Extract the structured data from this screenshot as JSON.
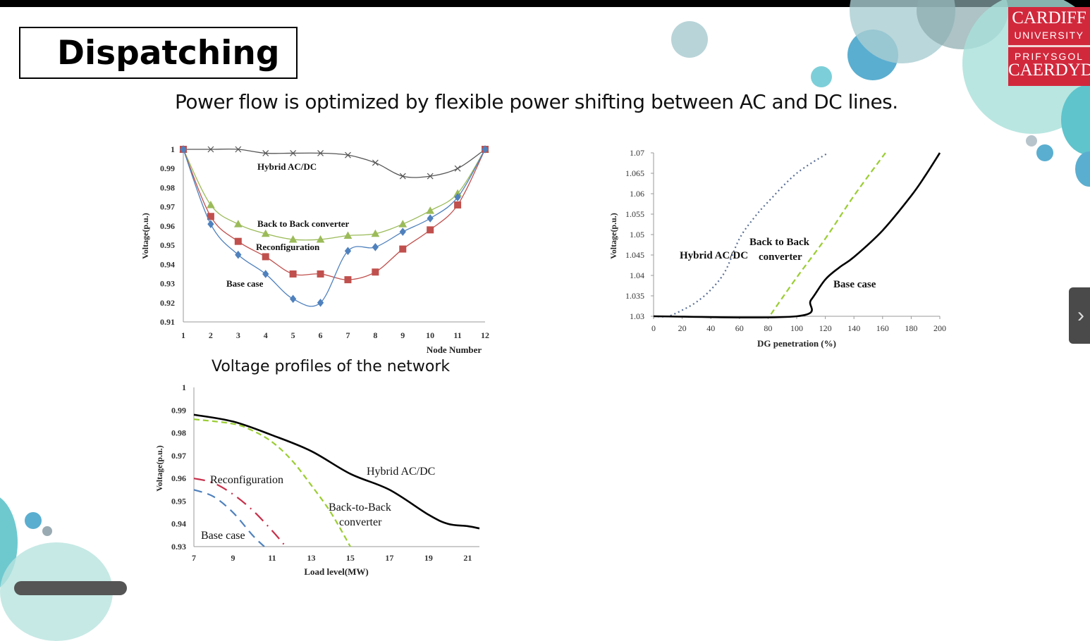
{
  "slide": {
    "title": "Dispatching",
    "subtitle": "Power flow is optimized by flexible power shifting between AC and DC lines.",
    "caption": "Voltage profiles of the network",
    "logo": {
      "line1": "CARDIFF",
      "line2": "UNIVERSITY",
      "line3": "PRIFYSGOL",
      "line4": "CAERDYDD"
    },
    "next_icon": "chevron-right-icon"
  },
  "chart_data": [
    {
      "type": "line",
      "title": "",
      "xlabel": "Node Number",
      "ylabel": "Voltage(p.u.)",
      "xlim": [
        1,
        12
      ],
      "ylim": [
        0.91,
        1.0
      ],
      "xticks": [
        "1",
        "2",
        "3",
        "4",
        "5",
        "6",
        "7",
        "8",
        "9",
        "10",
        "11",
        "12"
      ],
      "yticks": [
        "0.91",
        "0.92",
        "0.93",
        "0.94",
        "0.95",
        "0.96",
        "0.97",
        "0.98",
        "0.99",
        "1"
      ],
      "grid": false,
      "x": [
        1,
        2,
        3,
        4,
        5,
        6,
        7,
        8,
        9,
        10,
        11,
        12
      ],
      "series": [
        {
          "name": "Hybrid AC/DC",
          "color": "#555555",
          "marker": "x",
          "values": [
            1.0,
            1.0,
            1.0,
            0.998,
            0.998,
            0.998,
            0.997,
            0.993,
            0.986,
            0.986,
            0.99,
            1.0
          ]
        },
        {
          "name": "Back to Back converter",
          "color": "#9bbb59",
          "marker": "triangle",
          "values": [
            1.0,
            0.971,
            0.961,
            0.956,
            0.953,
            0.953,
            0.955,
            0.956,
            0.961,
            0.968,
            0.977,
            1.0
          ]
        },
        {
          "name": "Reconfiguration",
          "color": "#c0504d",
          "marker": "square",
          "values": [
            1.0,
            0.965,
            0.952,
            0.944,
            0.935,
            0.935,
            0.932,
            0.936,
            0.948,
            0.958,
            0.971,
            1.0
          ]
        },
        {
          "name": "Base case",
          "color": "#4f81bd",
          "marker": "diamond",
          "values": [
            1.0,
            0.961,
            0.945,
            0.935,
            0.922,
            0.92,
            0.947,
            0.949,
            0.957,
            0.964,
            0.975,
            1.0
          ]
        }
      ]
    },
    {
      "type": "line",
      "title": "",
      "xlabel": "DG penetration (%)",
      "ylabel": "Voltage(p.u.)",
      "xlim": [
        0,
        200
      ],
      "ylim": [
        1.03,
        1.07
      ],
      "xticks": [
        "0",
        "20",
        "40",
        "60",
        "80",
        "100",
        "120",
        "140",
        "160",
        "180",
        "200"
      ],
      "yticks": [
        "1.03",
        "1.035",
        "1.04",
        "1.045",
        "1.05",
        "1.055",
        "1.06",
        "1.065",
        "1.07"
      ],
      "grid": false,
      "series": [
        {
          "name": "Base case",
          "color": "#5a6f96",
          "dash": "dotted",
          "points": [
            [
              0,
              1.03
            ],
            [
              10,
              1.03
            ],
            [
              20,
              1.0315
            ],
            [
              30,
              1.0335
            ],
            [
              40,
              1.0365
            ],
            [
              50,
              1.041
            ],
            [
              60,
              1.049
            ],
            [
              70,
              1.054
            ],
            [
              80,
              1.058
            ],
            [
              100,
              1.065
            ],
            [
              122,
              1.07
            ]
          ]
        },
        {
          "name": "Back to Back converter",
          "color": "#9acd32",
          "dash": "dashed",
          "points": [
            [
              82,
              1.0305
            ],
            [
              100,
              1.0395
            ],
            [
              120,
              1.049
            ],
            [
              140,
              1.0595
            ],
            [
              162,
              1.07
            ]
          ]
        },
        {
          "name": "Hybrid AC/DC",
          "color": "#000000",
          "dash": "solid",
          "points": [
            [
              0,
              1.03
            ],
            [
              100,
              1.03
            ],
            [
              110,
              1.034
            ],
            [
              120,
              1.039
            ],
            [
              130,
              1.042
            ],
            [
              140,
              1.0445
            ],
            [
              160,
              1.051
            ],
            [
              180,
              1.0595
            ],
            [
              190,
              1.0645
            ],
            [
              200,
              1.07
            ]
          ]
        }
      ]
    },
    {
      "type": "line",
      "title": "",
      "xlabel": "Load  level(MW)",
      "ylabel": "Voltage(p.u.)",
      "xlim": [
        7,
        21.6
      ],
      "ylim": [
        0.93,
        1.0
      ],
      "xticks": [
        "7",
        "9",
        "11",
        "13",
        "15",
        "17",
        "19",
        "21"
      ],
      "yticks": [
        "0.93",
        "0.94",
        "0.95",
        "0.96",
        "0.97",
        "0.98",
        "0.99",
        "1"
      ],
      "grid": false,
      "series": [
        {
          "name": "Hybrid AC/DC",
          "color": "#000000",
          "dash": "solid",
          "points": [
            [
              7,
              0.988
            ],
            [
              9,
              0.985
            ],
            [
              11,
              0.979
            ],
            [
              13,
              0.972
            ],
            [
              15,
              0.962
            ],
            [
              17,
              0.955
            ],
            [
              19,
              0.944
            ],
            [
              20,
              0.94
            ],
            [
              21,
              0.939
            ],
            [
              21.6,
              0.938
            ]
          ]
        },
        {
          "name": "Back-to-Back converter",
          "color": "#9acd32",
          "dash": "dashed",
          "points": [
            [
              7,
              0.986
            ],
            [
              9,
              0.984
            ],
            [
              10,
              0.981
            ],
            [
              11,
              0.976
            ],
            [
              12,
              0.968
            ],
            [
              13,
              0.957
            ],
            [
              14,
              0.945
            ],
            [
              15,
              0.93
            ]
          ]
        },
        {
          "name": "Reconfiguration",
          "color": "#c8304a",
          "dash": "dashdot",
          "points": [
            [
              7,
              0.96
            ],
            [
              8,
              0.958
            ],
            [
              9,
              0.953
            ],
            [
              10,
              0.946
            ],
            [
              11,
              0.937
            ],
            [
              11.7,
              0.93
            ]
          ]
        },
        {
          "name": "Base case",
          "color": "#4f81bd",
          "dash": "dashed-long",
          "points": [
            [
              7,
              0.955
            ],
            [
              8,
              0.952
            ],
            [
              9,
              0.945
            ],
            [
              10,
              0.935
            ],
            [
              10.6,
              0.93
            ]
          ]
        }
      ]
    }
  ]
}
